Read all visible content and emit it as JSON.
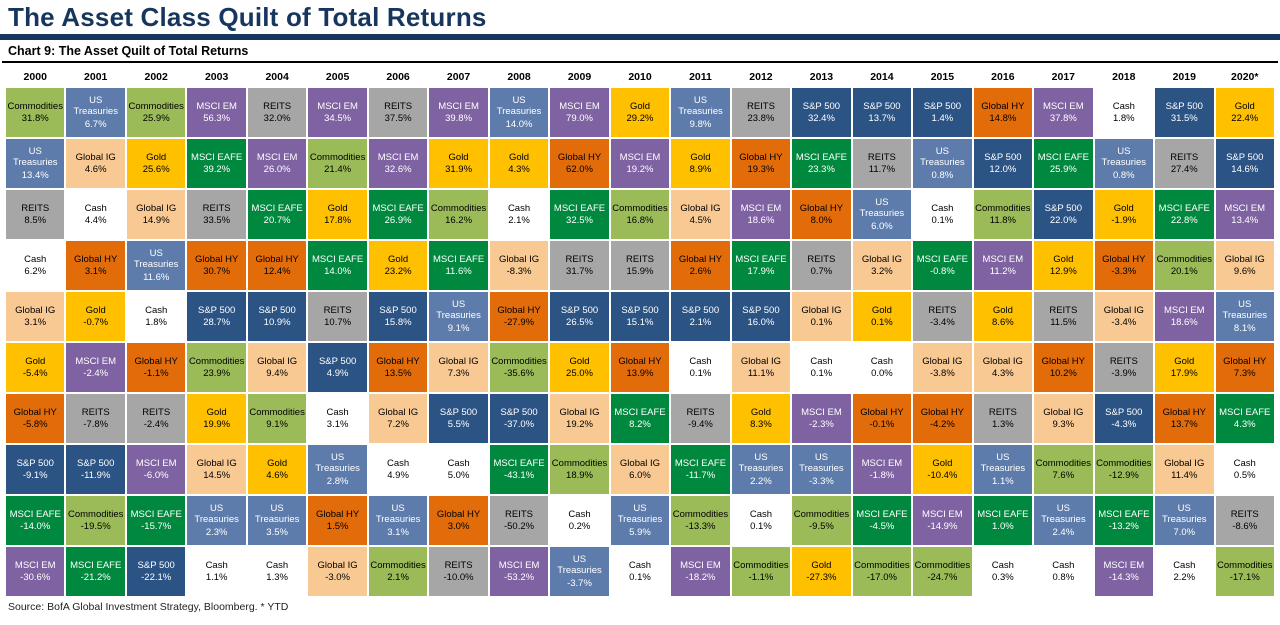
{
  "page": {
    "title": "The Asset Class Quilt of Total Returns",
    "chart_header": "Chart 9: The Asset Quilt of Total Returns",
    "source": "Source: BofA Global Investment Strategy, Bloomberg. * YTD"
  },
  "asset_colors": {
    "Commodities": {
      "bg": "#9bbb59",
      "fg": "#000000"
    },
    "US Treasuries": {
      "bg": "#5d7cab",
      "fg": "#ffffff"
    },
    "REITS": {
      "bg": "#a6a6a6",
      "fg": "#000000"
    },
    "Cash": {
      "bg": "#ffffff",
      "fg": "#000000"
    },
    "Global IG": {
      "bg": "#f9c993",
      "fg": "#000000"
    },
    "Gold": {
      "bg": "#ffc000",
      "fg": "#000000"
    },
    "Global HY": {
      "bg": "#e36c0a",
      "fg": "#000000"
    },
    "S&P 500": {
      "bg": "#2b5384",
      "fg": "#ffffff"
    },
    "MSCI EAFE": {
      "bg": "#00893e",
      "fg": "#ffffff"
    },
    "MSCI EM": {
      "bg": "#7e62a1",
      "fg": "#ffffff"
    }
  },
  "chart_data": {
    "type": "table",
    "title": "The Asset Class Quilt of Total Returns",
    "subtitle": "Chart 9: The Asset Quilt of Total Returns",
    "unit": "%",
    "assets": [
      "Commodities",
      "US Treasuries",
      "REITS",
      "Cash",
      "Global IG",
      "Gold",
      "Global HY",
      "S&P 500",
      "MSCI EAFE",
      "MSCI EM"
    ],
    "columns": [
      {
        "year": "2000",
        "cells": [
          [
            "Commodities",
            "31.8%"
          ],
          [
            "US Treasuries",
            "13.4%"
          ],
          [
            "REITS",
            "8.5%"
          ],
          [
            "Cash",
            "6.2%"
          ],
          [
            "Global IG",
            "3.1%"
          ],
          [
            "Gold",
            "-5.4%"
          ],
          [
            "Global HY",
            "-5.8%"
          ],
          [
            "S&P 500",
            "-9.1%"
          ],
          [
            "MSCI EAFE",
            "-14.0%"
          ],
          [
            "MSCI EM",
            "-30.6%"
          ]
        ]
      },
      {
        "year": "2001",
        "cells": [
          [
            "US Treasuries",
            "6.7%"
          ],
          [
            "Global IG",
            "4.6%"
          ],
          [
            "Cash",
            "4.4%"
          ],
          [
            "Global HY",
            "3.1%"
          ],
          [
            "Gold",
            "-0.7%"
          ],
          [
            "MSCI EM",
            "-2.4%"
          ],
          [
            "REITS",
            "-7.8%"
          ],
          [
            "S&P 500",
            "-11.9%"
          ],
          [
            "Commodities",
            "-19.5%"
          ],
          [
            "MSCI EAFE",
            "-21.2%"
          ]
        ]
      },
      {
        "year": "2002",
        "cells": [
          [
            "Commodities",
            "25.9%"
          ],
          [
            "Gold",
            "25.6%"
          ],
          [
            "Global IG",
            "14.9%"
          ],
          [
            "US Treasuries",
            "11.6%"
          ],
          [
            "Cash",
            "1.8%"
          ],
          [
            "Global HY",
            "-1.1%"
          ],
          [
            "REITS",
            "-2.4%"
          ],
          [
            "MSCI EM",
            "-6.0%"
          ],
          [
            "MSCI EAFE",
            "-15.7%"
          ],
          [
            "S&P 500",
            "-22.1%"
          ]
        ]
      },
      {
        "year": "2003",
        "cells": [
          [
            "MSCI EM",
            "56.3%"
          ],
          [
            "MSCI EAFE",
            "39.2%"
          ],
          [
            "REITS",
            "33.5%"
          ],
          [
            "Global HY",
            "30.7%"
          ],
          [
            "S&P 500",
            "28.7%"
          ],
          [
            "Commodities",
            "23.9%"
          ],
          [
            "Gold",
            "19.9%"
          ],
          [
            "Global IG",
            "14.5%"
          ],
          [
            "US Treasuries",
            "2.3%"
          ],
          [
            "Cash",
            "1.1%"
          ]
        ]
      },
      {
        "year": "2004",
        "cells": [
          [
            "REITS",
            "32.0%"
          ],
          [
            "MSCI EM",
            "26.0%"
          ],
          [
            "MSCI EAFE",
            "20.7%"
          ],
          [
            "Global HY",
            "12.4%"
          ],
          [
            "S&P 500",
            "10.9%"
          ],
          [
            "Global IG",
            "9.4%"
          ],
          [
            "Commodities",
            "9.1%"
          ],
          [
            "Gold",
            "4.6%"
          ],
          [
            "US Treasuries",
            "3.5%"
          ],
          [
            "Cash",
            "1.3%"
          ]
        ]
      },
      {
        "year": "2005",
        "cells": [
          [
            "MSCI EM",
            "34.5%"
          ],
          [
            "Commodities",
            "21.4%"
          ],
          [
            "Gold",
            "17.8%"
          ],
          [
            "MSCI EAFE",
            "14.0%"
          ],
          [
            "REITS",
            "10.7%"
          ],
          [
            "S&P 500",
            "4.9%"
          ],
          [
            "Cash",
            "3.1%"
          ],
          [
            "US Treasuries",
            "2.8%"
          ],
          [
            "Global HY",
            "1.5%"
          ],
          [
            "Global IG",
            "-3.0%"
          ]
        ]
      },
      {
        "year": "2006",
        "cells": [
          [
            "REITS",
            "37.5%"
          ],
          [
            "MSCI EM",
            "32.6%"
          ],
          [
            "MSCI EAFE",
            "26.9%"
          ],
          [
            "Gold",
            "23.2%"
          ],
          [
            "S&P 500",
            "15.8%"
          ],
          [
            "Global HY",
            "13.5%"
          ],
          [
            "Global IG",
            "7.2%"
          ],
          [
            "Cash",
            "4.9%"
          ],
          [
            "US Treasuries",
            "3.1%"
          ],
          [
            "Commodities",
            "2.1%"
          ]
        ]
      },
      {
        "year": "2007",
        "cells": [
          [
            "MSCI EM",
            "39.8%"
          ],
          [
            "Gold",
            "31.9%"
          ],
          [
            "Commodities",
            "16.2%"
          ],
          [
            "MSCI EAFE",
            "11.6%"
          ],
          [
            "US Treasuries",
            "9.1%"
          ],
          [
            "Global IG",
            "7.3%"
          ],
          [
            "S&P 500",
            "5.5%"
          ],
          [
            "Cash",
            "5.0%"
          ],
          [
            "Global HY",
            "3.0%"
          ],
          [
            "REITS",
            "-10.0%"
          ]
        ]
      },
      {
        "year": "2008",
        "cells": [
          [
            "US Treasuries",
            "14.0%"
          ],
          [
            "Gold",
            "4.3%"
          ],
          [
            "Cash",
            "2.1%"
          ],
          [
            "Global IG",
            "-8.3%"
          ],
          [
            "Global HY",
            "-27.9%"
          ],
          [
            "Commodities",
            "-35.6%"
          ],
          [
            "S&P 500",
            "-37.0%"
          ],
          [
            "MSCI EAFE",
            "-43.1%"
          ],
          [
            "REITS",
            "-50.2%"
          ],
          [
            "MSCI EM",
            "-53.2%"
          ]
        ]
      },
      {
        "year": "2009",
        "cells": [
          [
            "MSCI EM",
            "79.0%"
          ],
          [
            "Global HY",
            "62.0%"
          ],
          [
            "MSCI EAFE",
            "32.5%"
          ],
          [
            "REITS",
            "31.7%"
          ],
          [
            "S&P 500",
            "26.5%"
          ],
          [
            "Gold",
            "25.0%"
          ],
          [
            "Global IG",
            "19.2%"
          ],
          [
            "Commodities",
            "18.9%"
          ],
          [
            "Cash",
            "0.2%"
          ],
          [
            "US Treasuries",
            "-3.7%"
          ]
        ]
      },
      {
        "year": "2010",
        "cells": [
          [
            "Gold",
            "29.2%"
          ],
          [
            "MSCI EM",
            "19.2%"
          ],
          [
            "Commodities",
            "16.8%"
          ],
          [
            "REITS",
            "15.9%"
          ],
          [
            "S&P 500",
            "15.1%"
          ],
          [
            "Global HY",
            "13.9%"
          ],
          [
            "MSCI EAFE",
            "8.2%"
          ],
          [
            "Global IG",
            "6.0%"
          ],
          [
            "US Treasuries",
            "5.9%"
          ],
          [
            "Cash",
            "0.1%"
          ]
        ]
      },
      {
        "year": "2011",
        "cells": [
          [
            "US Treasuries",
            "9.8%"
          ],
          [
            "Gold",
            "8.9%"
          ],
          [
            "Global IG",
            "4.5%"
          ],
          [
            "Global HY",
            "2.6%"
          ],
          [
            "S&P 500",
            "2.1%"
          ],
          [
            "Cash",
            "0.1%"
          ],
          [
            "REITS",
            "-9.4%"
          ],
          [
            "MSCI EAFE",
            "-11.7%"
          ],
          [
            "Commodities",
            "-13.3%"
          ],
          [
            "MSCI EM",
            "-18.2%"
          ]
        ]
      },
      {
        "year": "2012",
        "cells": [
          [
            "REITS",
            "23.8%"
          ],
          [
            "Global HY",
            "19.3%"
          ],
          [
            "MSCI EM",
            "18.6%"
          ],
          [
            "MSCI EAFE",
            "17.9%"
          ],
          [
            "S&P 500",
            "16.0%"
          ],
          [
            "Global IG",
            "11.1%"
          ],
          [
            "Gold",
            "8.3%"
          ],
          [
            "US Treasuries",
            "2.2%"
          ],
          [
            "Cash",
            "0.1%"
          ],
          [
            "Commodities",
            "-1.1%"
          ]
        ]
      },
      {
        "year": "2013",
        "cells": [
          [
            "S&P 500",
            "32.4%"
          ],
          [
            "MSCI EAFE",
            "23.3%"
          ],
          [
            "Global HY",
            "8.0%"
          ],
          [
            "REITS",
            "0.7%"
          ],
          [
            "Global IG",
            "0.1%"
          ],
          [
            "Cash",
            "0.1%"
          ],
          [
            "MSCI EM",
            "-2.3%"
          ],
          [
            "US Treasuries",
            "-3.3%"
          ],
          [
            "Commodities",
            "-9.5%"
          ],
          [
            "Gold",
            "-27.3%"
          ]
        ]
      },
      {
        "year": "2014",
        "cells": [
          [
            "S&P 500",
            "13.7%"
          ],
          [
            "REITS",
            "11.7%"
          ],
          [
            "US Treasuries",
            "6.0%"
          ],
          [
            "Global IG",
            "3.2%"
          ],
          [
            "Gold",
            "0.1%"
          ],
          [
            "Cash",
            "0.0%"
          ],
          [
            "Global HY",
            "-0.1%"
          ],
          [
            "MSCI EM",
            "-1.8%"
          ],
          [
            "MSCI EAFE",
            "-4.5%"
          ],
          [
            "Commodities",
            "-17.0%"
          ]
        ]
      },
      {
        "year": "2015",
        "cells": [
          [
            "S&P 500",
            "1.4%"
          ],
          [
            "US Treasuries",
            "0.8%"
          ],
          [
            "Cash",
            "0.1%"
          ],
          [
            "MSCI EAFE",
            "-0.8%"
          ],
          [
            "REITS",
            "-3.4%"
          ],
          [
            "Global IG",
            "-3.8%"
          ],
          [
            "Global HY",
            "-4.2%"
          ],
          [
            "Gold",
            "-10.4%"
          ],
          [
            "MSCI EM",
            "-14.9%"
          ],
          [
            "Commodities",
            "-24.7%"
          ]
        ]
      },
      {
        "year": "2016",
        "cells": [
          [
            "Global HY",
            "14.8%"
          ],
          [
            "S&P 500",
            "12.0%"
          ],
          [
            "Commodities",
            "11.8%"
          ],
          [
            "MSCI EM",
            "11.2%"
          ],
          [
            "Gold",
            "8.6%"
          ],
          [
            "Global IG",
            "4.3%"
          ],
          [
            "REITS",
            "1.3%"
          ],
          [
            "US Treasuries",
            "1.1%"
          ],
          [
            "MSCI EAFE",
            "1.0%"
          ],
          [
            "Cash",
            "0.3%"
          ]
        ]
      },
      {
        "year": "2017",
        "cells": [
          [
            "MSCI EM",
            "37.8%"
          ],
          [
            "MSCI EAFE",
            "25.9%"
          ],
          [
            "S&P 500",
            "22.0%"
          ],
          [
            "Gold",
            "12.9%"
          ],
          [
            "REITS",
            "11.5%"
          ],
          [
            "Global HY",
            "10.2%"
          ],
          [
            "Global IG",
            "9.3%"
          ],
          [
            "Commodities",
            "7.6%"
          ],
          [
            "US Treasuries",
            "2.4%"
          ],
          [
            "Cash",
            "0.8%"
          ]
        ]
      },
      {
        "year": "2018",
        "cells": [
          [
            "Cash",
            "1.8%"
          ],
          [
            "US Treasuries",
            "0.8%"
          ],
          [
            "Gold",
            "-1.9%"
          ],
          [
            "Global HY",
            "-3.3%"
          ],
          [
            "Global IG",
            "-3.4%"
          ],
          [
            "REITS",
            "-3.9%"
          ],
          [
            "S&P 500",
            "-4.3%"
          ],
          [
            "Commodities",
            "-12.9%"
          ],
          [
            "MSCI EAFE",
            "-13.2%"
          ],
          [
            "MSCI EM",
            "-14.3%"
          ]
        ]
      },
      {
        "year": "2019",
        "cells": [
          [
            "S&P 500",
            "31.5%"
          ],
          [
            "REITS",
            "27.4%"
          ],
          [
            "MSCI EAFE",
            "22.8%"
          ],
          [
            "Commodities",
            "20.1%"
          ],
          [
            "MSCI EM",
            "18.6%"
          ],
          [
            "Gold",
            "17.9%"
          ],
          [
            "Global HY",
            "13.7%"
          ],
          [
            "Global IG",
            "11.4%"
          ],
          [
            "US Treasuries",
            "7.0%"
          ],
          [
            "Cash",
            "2.2%"
          ]
        ]
      },
      {
        "year": "2020*",
        "cells": [
          [
            "Gold",
            "22.4%"
          ],
          [
            "S&P 500",
            "14.6%"
          ],
          [
            "MSCI EM",
            "13.4%"
          ],
          [
            "Global IG",
            "9.6%"
          ],
          [
            "US Treasuries",
            "8.1%"
          ],
          [
            "Global HY",
            "7.3%"
          ],
          [
            "MSCI EAFE",
            "4.3%"
          ],
          [
            "Cash",
            "0.5%"
          ],
          [
            "REITS",
            "-8.6%"
          ],
          [
            "Commodities",
            "-17.1%"
          ]
        ]
      }
    ]
  }
}
